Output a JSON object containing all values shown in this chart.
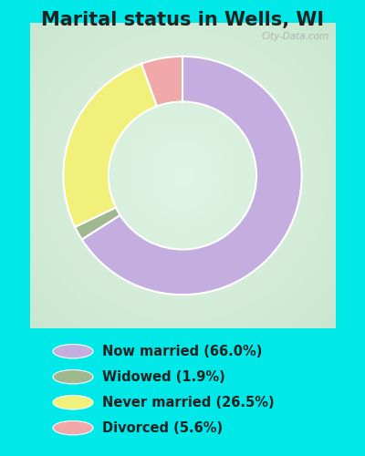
{
  "title": "Marital status in Wells, WI",
  "title_fontsize": 15,
  "slices": [
    66.0,
    1.9,
    26.5,
    5.6
  ],
  "colors": [
    "#c4aee0",
    "#9fb890",
    "#f0f07a",
    "#f0a8a8"
  ],
  "labels": [
    "Now married (66.0%)",
    "Widowed (1.9%)",
    "Never married (26.5%)",
    "Divorced (5.6%)"
  ],
  "bg_cyan": "#00e8e8",
  "bg_chart": "#e8f5ee",
  "watermark": "City-Data.com",
  "donut_width": 0.38
}
